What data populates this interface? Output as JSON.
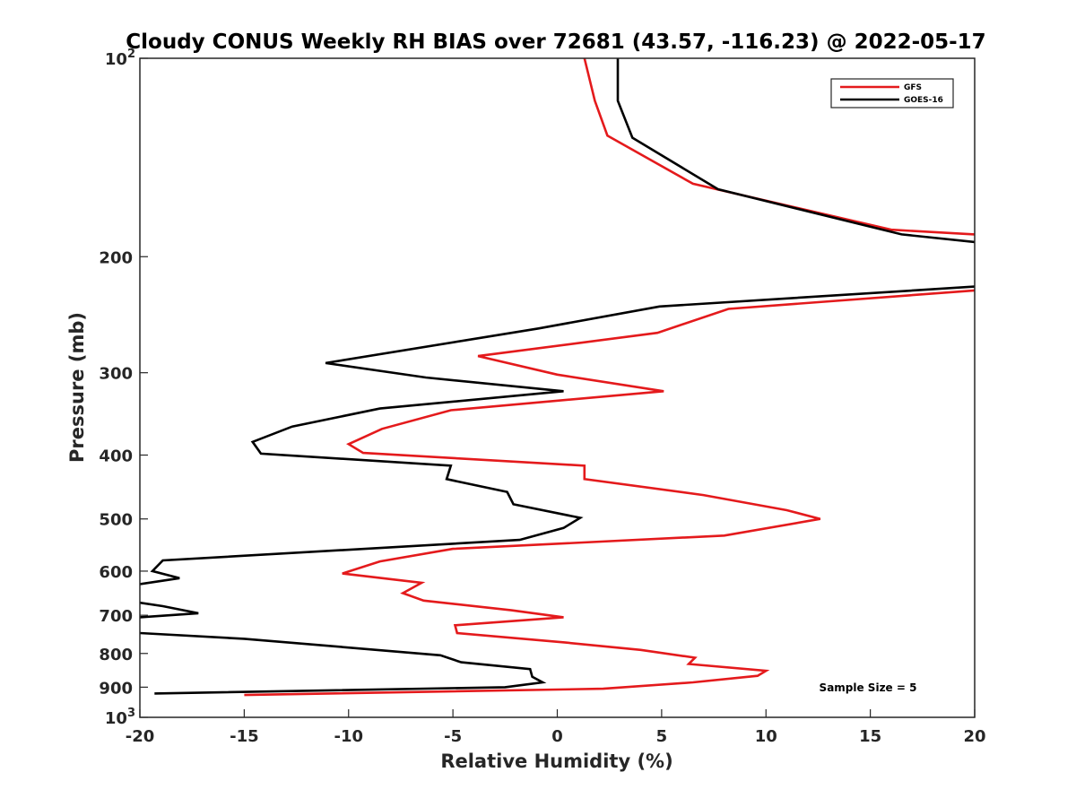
{
  "chart_data": {
    "type": "line",
    "title": "Cloudy CONUS Weekly RH BIAS over 72681 (43.57, -116.23) @ 2022-05-17",
    "xlabel": "Relative Humidity (%)",
    "ylabel": "Pressure (mb)",
    "xlim": [
      -20,
      20
    ],
    "ylim": [
      100,
      1000
    ],
    "yscale": "log",
    "yreversed": true,
    "x_ticks": [
      "-20",
      "-15",
      "-10",
      "-5",
      "0",
      "5",
      "10",
      "15",
      "20"
    ],
    "y_ticks": [
      {
        "value": 100,
        "label": "10",
        "sup": "2"
      },
      {
        "value": 200,
        "label": "200",
        "sup": ""
      },
      {
        "value": 300,
        "label": "300",
        "sup": ""
      },
      {
        "value": 400,
        "label": "400",
        "sup": ""
      },
      {
        "value": 500,
        "label": "500",
        "sup": ""
      },
      {
        "value": 600,
        "label": "600",
        "sup": ""
      },
      {
        "value": 700,
        "label": "700",
        "sup": ""
      },
      {
        "value": 800,
        "label": "800",
        "sup": ""
      },
      {
        "value": 900,
        "label": "900",
        "sup": ""
      },
      {
        "value": 1000,
        "label": "10",
        "sup": "3"
      }
    ],
    "legend_position": "top-right",
    "grid": false,
    "annotation": "Sample Size = 5",
    "series": [
      {
        "name": "GFS",
        "color": "#e41a1c",
        "x": [
          1.3,
          1.8,
          2.4,
          6.5,
          16,
          20,
          null,
          20,
          8.2,
          4.8,
          -3.8,
          0,
          5.1,
          -5.1,
          -8.4,
          -10,
          -9.3,
          1.3,
          1.3,
          7,
          11,
          12.6,
          8,
          -5,
          -8.5,
          -10.3,
          -6.5,
          -7.4,
          -6.4,
          -2.2,
          0.3,
          -4.9,
          -4.8,
          0.4,
          4,
          6.6,
          6.3,
          10,
          9.6,
          6.5,
          2.2,
          -15
        ],
        "y": [
          100,
          116,
          131,
          155,
          182,
          185,
          null,
          225,
          240,
          261,
          283,
          302,
          320,
          342,
          365,
          385,
          397,
          415,
          435,
          460,
          485,
          500,
          530,
          555,
          580,
          605,
          625,
          648,
          665,
          688,
          705,
          725,
          745,
          770,
          790,
          812,
          830,
          850,
          865,
          885,
          905,
          925
        ]
      },
      {
        "name": "GOES-16",
        "color": "#000000",
        "x": [
          2.9,
          2.9,
          3.6,
          7.7,
          16.5,
          20,
          null,
          20,
          4.9,
          -0.9,
          -11.1,
          -6.3,
          0.3,
          -8.5,
          -12.7,
          -14.6,
          -14.2,
          -5.1,
          -5.3,
          -2.4,
          -2.1,
          1.1,
          0.3,
          -1.8,
          -18.9,
          -19.4,
          -18.1,
          -20,
          null,
          -20,
          -18.9,
          -17.2,
          -20,
          null,
          -20,
          -15,
          -5.6,
          -4.6,
          -1.3,
          -1.2,
          -0.7,
          -2.5,
          -19.3
        ],
        "y": [
          100,
          116,
          132,
          158,
          185,
          190,
          null,
          222,
          238,
          257,
          290,
          305,
          320,
          340,
          362,
          382,
          398,
          415,
          435,
          455,
          475,
          498,
          516,
          538,
          578,
          600,
          615,
          628,
          null,
          670,
          678,
          695,
          705,
          null,
          745,
          760,
          805,
          825,
          845,
          868,
          885,
          900,
          920
        ]
      }
    ]
  }
}
